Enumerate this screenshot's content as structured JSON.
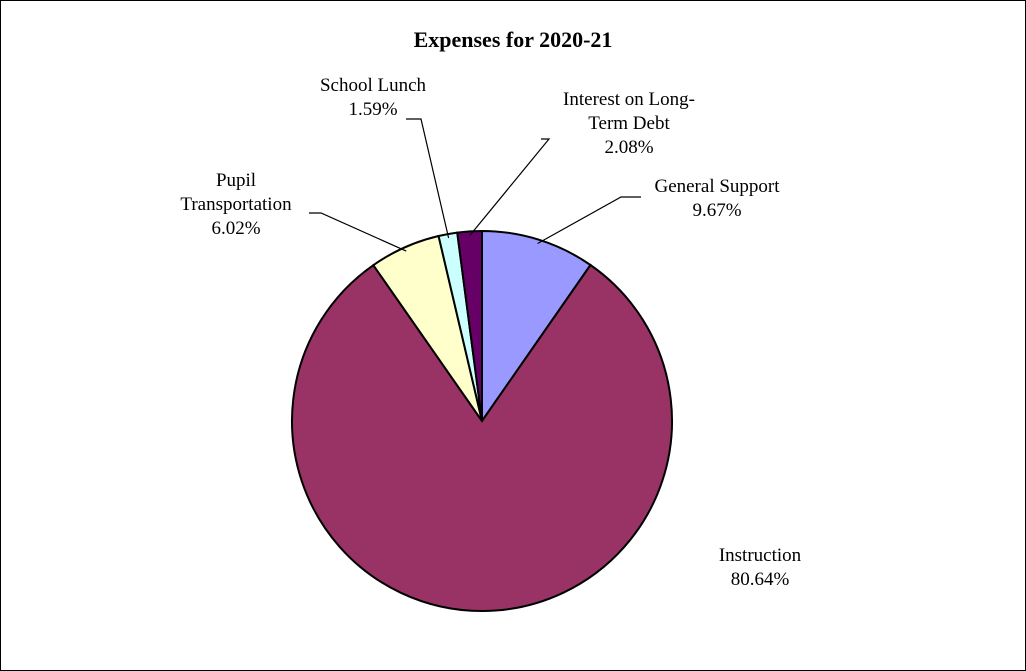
{
  "chart_data": {
    "type": "pie",
    "title": "Expenses for 2020-21",
    "start_angle_deg": 0,
    "direction": "clockwise",
    "legend": "none",
    "slices": [
      {
        "name": "General Support",
        "label_lines": [
          "General Support"
        ],
        "value": 9.67,
        "value_label": "9.67%",
        "color": "#9999FF"
      },
      {
        "name": "Instruction",
        "label_lines": [
          "Instruction"
        ],
        "value": 80.64,
        "value_label": "80.64%",
        "color": "#993366"
      },
      {
        "name": "Pupil Transportation",
        "label_lines": [
          "Pupil",
          "Transportation"
        ],
        "value": 6.02,
        "value_label": "6.02%",
        "color": "#FFFFCC"
      },
      {
        "name": "School Lunch",
        "label_lines": [
          "School Lunch"
        ],
        "value": 1.59,
        "value_label": "1.59%",
        "color": "#CCFFFF"
      },
      {
        "name": "Interest on Long-Term Debt",
        "label_lines": [
          "Interest on Long-",
          "Term Debt"
        ],
        "value": 2.08,
        "value_label": "2.08%",
        "color": "#660066"
      }
    ]
  }
}
